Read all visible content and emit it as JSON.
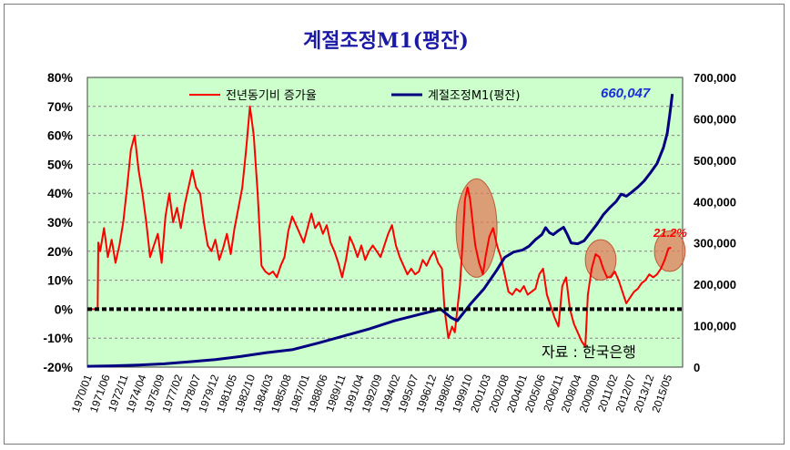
{
  "chart_data": {
    "type": "line",
    "title": "계절조정M1(평잔)",
    "source": "자료 : 한국은행",
    "y_left": {
      "ticks": [
        "80%",
        "70%",
        "60%",
        "50%",
        "40%",
        "30%",
        "20%",
        "10%",
        "0%",
        "-10%",
        "-20%"
      ],
      "range": [
        -20,
        80
      ]
    },
    "y_right": {
      "ticks": [
        "700,000",
        "600,000",
        "500,000",
        "400,000",
        "300,000",
        "200,000",
        "100,000",
        "0"
      ],
      "range": [
        0,
        700000
      ]
    },
    "x_ticks": [
      "1970/01",
      "1971/06",
      "1972/11",
      "1974/04",
      "1975/09",
      "1977/02",
      "1978/07",
      "1979/12",
      "1981/05",
      "1982/10",
      "1984/03",
      "1985/08",
      "1987/01",
      "1988/06",
      "1989/11",
      "1991/04",
      "1992/09",
      "1994/02",
      "1995/07",
      "1996/12",
      "1998/05",
      "1999/10",
      "2001/03",
      "2002/08",
      "2004/01",
      "2005/06",
      "2006/11",
      "2008/04",
      "2009/09",
      "2011/02",
      "2012/07",
      "2013/12",
      "2015/05"
    ],
    "x_range": [
      1970.0,
      2016.5
    ],
    "grid": true,
    "legend_placement": "top",
    "series": [
      {
        "name": "전년동기비 증가율",
        "axis": "left",
        "color": "#ff0000",
        "points": [
          [
            1970.0,
            0
          ],
          [
            1970.8,
            0
          ],
          [
            1970.85,
            23
          ],
          [
            1971.0,
            20
          ],
          [
            1971.3,
            28
          ],
          [
            1971.6,
            18
          ],
          [
            1971.9,
            24
          ],
          [
            1972.2,
            16
          ],
          [
            1972.5,
            22
          ],
          [
            1972.8,
            30
          ],
          [
            1973.1,
            42
          ],
          [
            1973.4,
            55
          ],
          [
            1973.7,
            60
          ],
          [
            1974.0,
            48
          ],
          [
            1974.3,
            40
          ],
          [
            1974.6,
            30
          ],
          [
            1974.9,
            18
          ],
          [
            1975.2,
            22
          ],
          [
            1975.5,
            26
          ],
          [
            1975.8,
            16
          ],
          [
            1976.1,
            32
          ],
          [
            1976.4,
            40
          ],
          [
            1976.7,
            30
          ],
          [
            1977.0,
            35
          ],
          [
            1977.3,
            28
          ],
          [
            1977.6,
            36
          ],
          [
            1977.9,
            42
          ],
          [
            1978.2,
            48
          ],
          [
            1978.5,
            42
          ],
          [
            1978.8,
            40
          ],
          [
            1979.1,
            30
          ],
          [
            1979.4,
            22
          ],
          [
            1979.7,
            20
          ],
          [
            1980.0,
            24
          ],
          [
            1980.3,
            17
          ],
          [
            1980.6,
            21
          ],
          [
            1980.9,
            26
          ],
          [
            1981.2,
            19
          ],
          [
            1981.5,
            28
          ],
          [
            1981.8,
            35
          ],
          [
            1982.1,
            42
          ],
          [
            1982.4,
            55
          ],
          [
            1982.7,
            70
          ],
          [
            1983.0,
            60
          ],
          [
            1983.3,
            40
          ],
          [
            1983.6,
            15
          ],
          [
            1983.9,
            13
          ],
          [
            1984.2,
            12
          ],
          [
            1984.5,
            13
          ],
          [
            1984.8,
            11
          ],
          [
            1985.1,
            15
          ],
          [
            1985.4,
            18
          ],
          [
            1985.7,
            27
          ],
          [
            1986.0,
            32
          ],
          [
            1986.3,
            29
          ],
          [
            1986.6,
            26
          ],
          [
            1986.9,
            23
          ],
          [
            1987.2,
            28
          ],
          [
            1987.5,
            33
          ],
          [
            1987.8,
            28
          ],
          [
            1988.1,
            30
          ],
          [
            1988.4,
            26
          ],
          [
            1988.7,
            29
          ],
          [
            1989.0,
            23
          ],
          [
            1989.3,
            20
          ],
          [
            1989.6,
            16
          ],
          [
            1989.9,
            11
          ],
          [
            1990.2,
            17
          ],
          [
            1990.5,
            25
          ],
          [
            1990.8,
            22
          ],
          [
            1991.1,
            18
          ],
          [
            1991.4,
            22
          ],
          [
            1991.7,
            17
          ],
          [
            1992.0,
            20
          ],
          [
            1992.3,
            22
          ],
          [
            1992.6,
            20
          ],
          [
            1992.9,
            18
          ],
          [
            1993.2,
            22
          ],
          [
            1993.5,
            26
          ],
          [
            1993.8,
            29
          ],
          [
            1994.1,
            22
          ],
          [
            1994.4,
            18
          ],
          [
            1994.7,
            15
          ],
          [
            1995.0,
            12
          ],
          [
            1995.3,
            14
          ],
          [
            1995.6,
            12
          ],
          [
            1995.9,
            13
          ],
          [
            1996.2,
            17
          ],
          [
            1996.5,
            15
          ],
          [
            1996.8,
            18
          ],
          [
            1997.1,
            20
          ],
          [
            1997.4,
            16
          ],
          [
            1997.7,
            14
          ],
          [
            1997.9,
            0
          ],
          [
            1998.2,
            -10
          ],
          [
            1998.5,
            -6
          ],
          [
            1998.7,
            -8
          ],
          [
            1998.9,
            0
          ],
          [
            1999.1,
            8
          ],
          [
            1999.3,
            22
          ],
          [
            1999.5,
            38
          ],
          [
            1999.7,
            42
          ],
          [
            1999.9,
            38
          ],
          [
            2000.1,
            30
          ],
          [
            2000.3,
            22
          ],
          [
            2000.6,
            16
          ],
          [
            2000.9,
            12
          ],
          [
            2001.1,
            18
          ],
          [
            2001.4,
            25
          ],
          [
            2001.7,
            28
          ],
          [
            2002.0,
            22
          ],
          [
            2002.3,
            18
          ],
          [
            2002.6,
            12
          ],
          [
            2002.9,
            6
          ],
          [
            2003.2,
            5
          ],
          [
            2003.5,
            7
          ],
          [
            2003.8,
            6
          ],
          [
            2004.1,
            8
          ],
          [
            2004.4,
            5
          ],
          [
            2004.7,
            6
          ],
          [
            2005.0,
            7
          ],
          [
            2005.3,
            12
          ],
          [
            2005.6,
            14
          ],
          [
            2005.9,
            5
          ],
          [
            2006.2,
            1
          ],
          [
            2006.5,
            -3
          ],
          [
            2006.8,
            -6
          ],
          [
            2007.1,
            8
          ],
          [
            2007.4,
            11
          ],
          [
            2007.7,
            0
          ],
          [
            2008.0,
            -5
          ],
          [
            2008.3,
            -8
          ],
          [
            2008.6,
            -11
          ],
          [
            2008.9,
            -13
          ],
          [
            2009.1,
            5
          ],
          [
            2009.4,
            14
          ],
          [
            2009.7,
            19
          ],
          [
            2010.0,
            18
          ],
          [
            2010.3,
            14
          ],
          [
            2010.6,
            11
          ],
          [
            2010.9,
            11
          ],
          [
            2011.2,
            13
          ],
          [
            2011.5,
            10
          ],
          [
            2011.8,
            6
          ],
          [
            2012.1,
            2
          ],
          [
            2012.4,
            4
          ],
          [
            2012.7,
            6
          ],
          [
            2013.0,
            7
          ],
          [
            2013.3,
            9
          ],
          [
            2013.6,
            10
          ],
          [
            2013.9,
            12
          ],
          [
            2014.2,
            11
          ],
          [
            2014.5,
            12
          ],
          [
            2014.8,
            14
          ],
          [
            2015.1,
            17
          ],
          [
            2015.4,
            21
          ],
          [
            2015.6,
            21.2
          ]
        ]
      },
      {
        "name": "계절조정M1(평잔)",
        "axis": "right",
        "color": "#000080",
        "points": [
          [
            1970.0,
            2000
          ],
          [
            1972.0,
            3000
          ],
          [
            1974.0,
            5000
          ],
          [
            1976.0,
            8000
          ],
          [
            1978.0,
            13000
          ],
          [
            1980.0,
            18000
          ],
          [
            1982.0,
            26000
          ],
          [
            1984.0,
            35000
          ],
          [
            1986.0,
            42000
          ],
          [
            1988.0,
            58000
          ],
          [
            1990.0,
            75000
          ],
          [
            1992.0,
            92000
          ],
          [
            1994.0,
            112000
          ],
          [
            1996.0,
            128000
          ],
          [
            1997.6,
            140000
          ],
          [
            1998.4,
            120000
          ],
          [
            1998.9,
            112000
          ],
          [
            1999.3,
            128000
          ],
          [
            2000.0,
            155000
          ],
          [
            2001.0,
            190000
          ],
          [
            2002.0,
            235000
          ],
          [
            2002.6,
            265000
          ],
          [
            2003.3,
            278000
          ],
          [
            2004.0,
            283000
          ],
          [
            2004.5,
            292000
          ],
          [
            2005.0,
            308000
          ],
          [
            2005.5,
            320000
          ],
          [
            2005.8,
            337000
          ],
          [
            2006.1,
            325000
          ],
          [
            2006.4,
            320000
          ],
          [
            2006.8,
            330000
          ],
          [
            2007.2,
            338000
          ],
          [
            2007.5,
            320000
          ],
          [
            2007.8,
            300000
          ],
          [
            2008.3,
            298000
          ],
          [
            2008.8,
            305000
          ],
          [
            2009.3,
            325000
          ],
          [
            2009.8,
            345000
          ],
          [
            2010.3,
            368000
          ],
          [
            2010.8,
            385000
          ],
          [
            2011.3,
            400000
          ],
          [
            2011.7,
            418000
          ],
          [
            2012.1,
            413000
          ],
          [
            2012.5,
            422000
          ],
          [
            2013.0,
            435000
          ],
          [
            2013.5,
            450000
          ],
          [
            2014.0,
            470000
          ],
          [
            2014.5,
            492000
          ],
          [
            2015.0,
            530000
          ],
          [
            2015.3,
            565000
          ],
          [
            2015.5,
            610000
          ],
          [
            2015.7,
            660047
          ]
        ]
      }
    ],
    "annotations": {
      "last_m1": "660,047",
      "last_growth": "21.2%"
    },
    "highlights": [
      {
        "x": 2000.4,
        "y": 28,
        "rx": 1.6,
        "ry": 17
      },
      {
        "x": 2010.1,
        "y": 17,
        "rx": 1.2,
        "ry": 7
      },
      {
        "x": 2015.5,
        "y": 20,
        "rx": 1.2,
        "ry": 7
      }
    ]
  }
}
